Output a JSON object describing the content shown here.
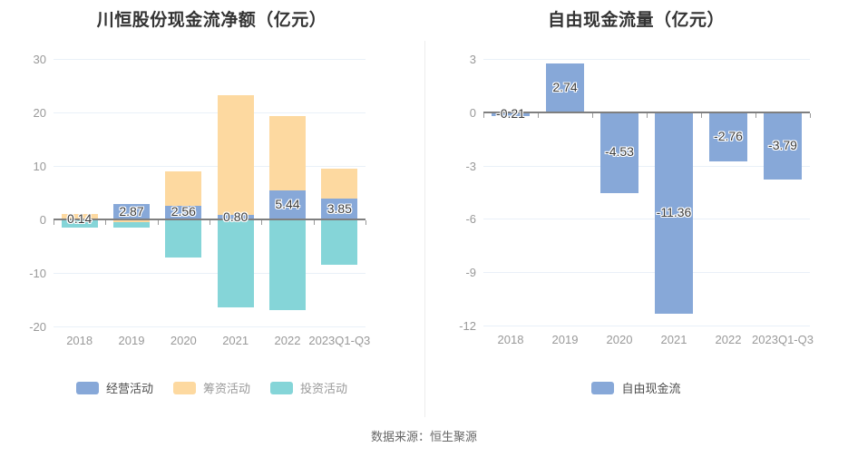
{
  "footer": {
    "source": "数据来源：恒生聚源"
  },
  "colors": {
    "operating_blue": "#87A8D8",
    "financing_orange": "#FDD9A0",
    "investing_teal": "#85D5D8",
    "grid": "#e9f0f8",
    "zero_axis": "#7f7f7f",
    "axis_text": "#999999",
    "title_text": "#333333",
    "value_label_text": "#3d3d3d",
    "footer_text": "#666666"
  },
  "chart_data": [
    {
      "type": "bar",
      "stacked": true,
      "title": "川恒股份现金流净额（亿元）",
      "categories": [
        "2018",
        "2019",
        "2020",
        "2021",
        "2022",
        "2023Q1-Q3"
      ],
      "series": [
        {
          "name": "经营活动",
          "color": "#87A8D8",
          "values": [
            0.14,
            2.87,
            2.56,
            0.8,
            5.44,
            3.85
          ],
          "labeled": true
        },
        {
          "name": "筹资活动",
          "color": "#FDD9A0",
          "values": [
            0.9,
            -0.5,
            6.5,
            22.4,
            13.9,
            5.7
          ],
          "labeled": false
        },
        {
          "name": "投资活动",
          "color": "#85D5D8",
          "values": [
            -1.5,
            -1.1,
            -7.2,
            -16.4,
            -17.0,
            -8.5
          ],
          "labeled": false
        }
      ],
      "value_labels": [
        "0.14",
        "2.87",
        "2.56",
        "0.80",
        "5.44",
        "3.85"
      ],
      "ylim": [
        -20,
        30
      ],
      "ytick_step": 10,
      "yticks": [
        "30",
        "20",
        "10",
        "0",
        "-10",
        "-20"
      ],
      "grid": true,
      "legend_position": "bottom",
      "legend": [
        {
          "label": "经营活动",
          "color": "#87A8D8",
          "text_color": "#4d4d4d"
        },
        {
          "label": "筹资活动",
          "color": "#FDD9A0",
          "text_color": "#999999"
        },
        {
          "label": "投资活动",
          "color": "#85D5D8",
          "text_color": "#999999"
        }
      ]
    },
    {
      "type": "bar",
      "stacked": false,
      "title": "自由现金流量（亿元）",
      "categories": [
        "2018",
        "2019",
        "2020",
        "2021",
        "2022",
        "2023Q1-Q3"
      ],
      "series": [
        {
          "name": "自由现金流",
          "color": "#87A8D8",
          "values": [
            -0.21,
            2.74,
            -4.53,
            -11.36,
            -2.76,
            -3.79
          ],
          "labeled": true
        }
      ],
      "value_labels": [
        "-0.21",
        "2.74",
        "-4.53",
        "-11.36",
        "-2.76",
        "-3.79"
      ],
      "ylim": [
        -12,
        3
      ],
      "ytick_step": 3,
      "yticks": [
        "3",
        "0",
        "-3",
        "-6",
        "-9",
        "-12"
      ],
      "grid": true,
      "legend_position": "bottom",
      "legend": [
        {
          "label": "自由现金流",
          "color": "#87A8D8",
          "text_color": "#4d4d4d"
        }
      ]
    }
  ]
}
